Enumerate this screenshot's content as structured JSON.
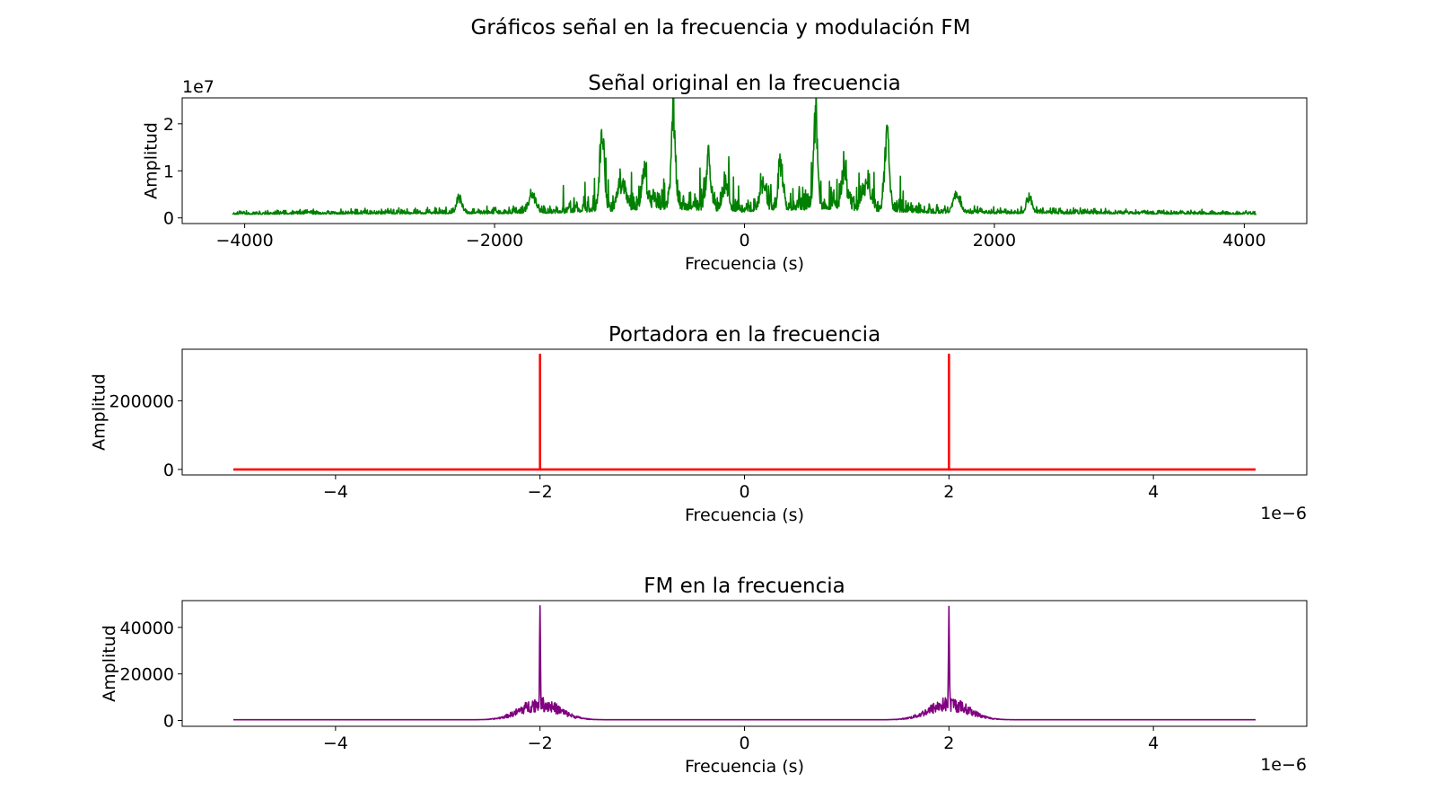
{
  "figure": {
    "suptitle": "Gráficos señal en la frecuencia y modulación FM"
  },
  "chart_data": [
    {
      "type": "line",
      "title": "Señal original en la frecuencia",
      "xlabel": "Frecuencia (s)",
      "ylabel": "Amplitud",
      "y_offset_label": "1e7",
      "x_offset_label": "",
      "color": "#008000",
      "xlim": [
        -4500,
        4500
      ],
      "ylim": [
        -1.2,
        25.5
      ],
      "x_ticks": [
        -4000,
        -2000,
        0,
        2000,
        4000
      ],
      "x_tick_labels": [
        "−4000",
        "−2000",
        "0",
        "2000",
        "4000"
      ],
      "y_ticks": [
        0,
        10,
        20
      ],
      "y_tick_labels": [
        "0",
        "1",
        "2"
      ],
      "x_range": [
        -4096,
        4096
      ],
      "baseline": 0.6,
      "noise": 1.0,
      "peaks": [
        {
          "x": -570,
          "y": 24.0,
          "w": 22
        },
        {
          "x": 570,
          "y": 24.0,
          "w": 22
        },
        {
          "x": -1140,
          "y": 20.0,
          "w": 26
        },
        {
          "x": 1140,
          "y": 20.0,
          "w": 26
        },
        {
          "x": -290,
          "y": 12.5,
          "w": 25
        },
        {
          "x": 290,
          "y": 12.5,
          "w": 25
        },
        {
          "x": -2280,
          "y": 4.0,
          "w": 30
        },
        {
          "x": 2280,
          "y": 4.0,
          "w": 30
        },
        {
          "x": -1700,
          "y": 4.5,
          "w": 40
        },
        {
          "x": 1700,
          "y": 4.5,
          "w": 40
        },
        {
          "x": -980,
          "y": 7.0,
          "w": 40
        },
        {
          "x": 980,
          "y": 7.0,
          "w": 40
        },
        {
          "x": -800,
          "y": 7.5,
          "w": 30
        },
        {
          "x": 800,
          "y": 7.5,
          "w": 30
        },
        {
          "x": -150,
          "y": 7.0,
          "w": 30
        },
        {
          "x": 150,
          "y": 7.0,
          "w": 30
        }
      ],
      "envelope": [
        {
          "x": 0,
          "y": 4.0
        },
        {
          "x": 400,
          "y": 7.0
        },
        {
          "x": 700,
          "y": 8.0
        },
        {
          "x": 1000,
          "y": 5.0
        },
        {
          "x": 1300,
          "y": 4.0
        },
        {
          "x": 1500,
          "y": 2.5
        },
        {
          "x": 2000,
          "y": 2.0
        },
        {
          "x": 3000,
          "y": 1.6
        },
        {
          "x": 4096,
          "y": 1.0
        }
      ]
    },
    {
      "type": "line",
      "title": "Portadora en la frecuencia",
      "xlabel": "Frecuencia (s)",
      "ylabel": "Amplitud",
      "y_offset_label": "",
      "x_offset_label": "1e−6",
      "color": "#ff0000",
      "xlim": [
        -5.5,
        5.5
      ],
      "ylim": [
        -16000,
        350000
      ],
      "x_ticks": [
        -4,
        -2,
        0,
        2,
        4
      ],
      "x_tick_labels": [
        "−4",
        "−2",
        "0",
        "2",
        "4"
      ],
      "y_ticks": [
        0,
        200000
      ],
      "y_tick_labels": [
        "0",
        "200000"
      ],
      "x_range": [
        -5,
        5
      ],
      "baseline": 0,
      "spikes": [
        {
          "x": -2,
          "y": 334000
        },
        {
          "x": 2,
          "y": 334000
        }
      ]
    },
    {
      "type": "line",
      "title": "FM en la frecuencia",
      "xlabel": "Frecuencia (s)",
      "ylabel": "Amplitud",
      "y_offset_label": "",
      "x_offset_label": "1e−6",
      "color": "#800080",
      "xlim": [
        -5.5,
        5.5
      ],
      "ylim": [
        -2500,
        51500
      ],
      "x_ticks": [
        -4,
        -2,
        0,
        2,
        4
      ],
      "x_tick_labels": [
        "−4",
        "−2",
        "0",
        "2",
        "4"
      ],
      "y_ticks": [
        0,
        20000,
        40000
      ],
      "y_tick_labels": [
        "0",
        "20000",
        "40000"
      ],
      "x_range": [
        -5,
        5
      ],
      "baseline": 300,
      "peaks": [
        {
          "x": -2,
          "y": 49000,
          "spread": 0.6,
          "shoulder": 10000
        },
        {
          "x": 2,
          "y": 49000,
          "spread": 0.6,
          "shoulder": 10000
        }
      ]
    }
  ]
}
